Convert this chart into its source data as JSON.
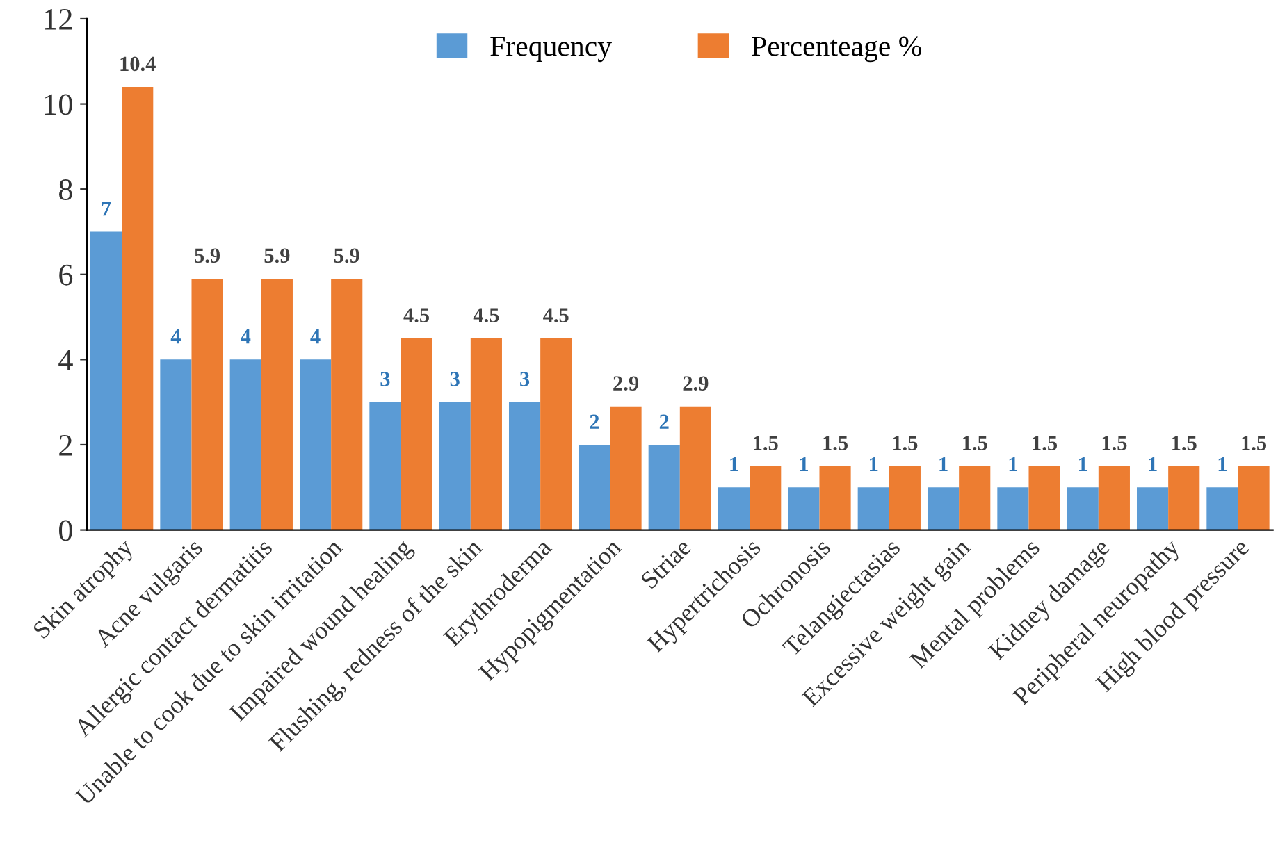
{
  "chart_data": {
    "type": "bar",
    "categories": [
      "Skin atrophy",
      "Acne vulgaris",
      "Allergic contact dermatitis",
      "Unable to cook due to skin irritation",
      "Impaired wound healing",
      "Flushing, redness of the skin",
      "Erythroderma",
      "Hypopigmentation",
      "Striae",
      "Hypertrichosis",
      "Ochronosis",
      "Telangiectasias",
      "Excessive weight gain",
      "Mental problems",
      "Kidney damage",
      "Peripheral neuropathy",
      "High blood pressure"
    ],
    "series": [
      {
        "name": "Frequency",
        "color": "#5b9bd5",
        "values": [
          7,
          4,
          4,
          4,
          3,
          3,
          3,
          2,
          2,
          1,
          1,
          1,
          1,
          1,
          1,
          1,
          1
        ]
      },
      {
        "name": "Percenteage %",
        "color": "#ed7d31",
        "values": [
          10.4,
          5.9,
          5.9,
          5.9,
          4.5,
          4.5,
          4.5,
          2.9,
          2.9,
          1.5,
          1.5,
          1.5,
          1.5,
          1.5,
          1.5,
          1.5,
          1.5
        ]
      }
    ],
    "ylim": [
      0,
      12
    ],
    "yticks": [
      0,
      2,
      4,
      6,
      8,
      10,
      12
    ],
    "data_labels": true,
    "legend": "top",
    "grid": false
  }
}
